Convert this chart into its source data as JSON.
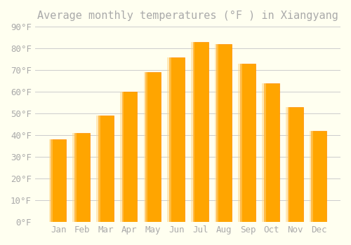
{
  "title": "Average monthly temperatures (°F ) in Xiangyang",
  "months": [
    "Jan",
    "Feb",
    "Mar",
    "Apr",
    "May",
    "Jun",
    "Jul",
    "Aug",
    "Sep",
    "Oct",
    "Nov",
    "Dec"
  ],
  "temperatures": [
    38,
    41,
    49,
    60,
    69,
    76,
    83,
    82,
    73,
    64,
    53,
    42
  ],
  "bar_color": "#FFA500",
  "bar_edge_color": "#FF8C00",
  "background_color": "#FFFFF0",
  "grid_color": "#CCCCCC",
  "text_color": "#AAAAAA",
  "ylim": [
    0,
    90
  ],
  "yticks": [
    0,
    10,
    20,
    30,
    40,
    50,
    60,
    70,
    80,
    90
  ],
  "title_fontsize": 11,
  "tick_fontsize": 9,
  "font_family": "monospace"
}
